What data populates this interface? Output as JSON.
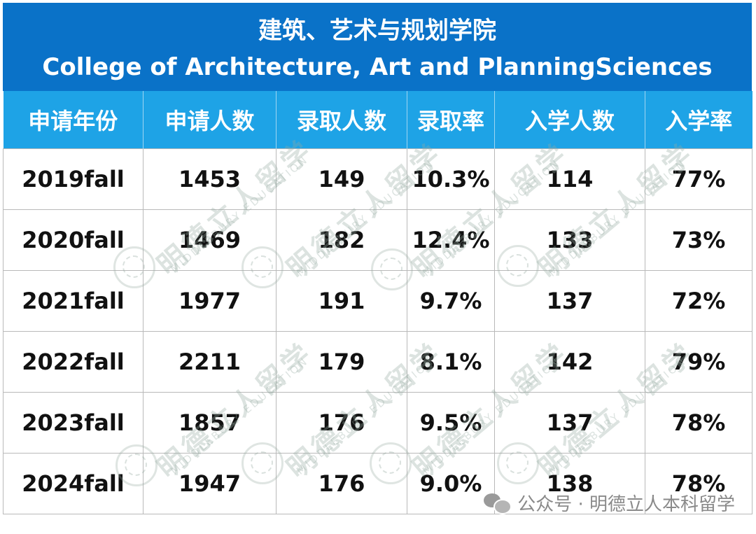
{
  "title": {
    "zh": "建筑、艺术与规划学院",
    "en": "College of Architecture, Art and PlanningSciences"
  },
  "table": {
    "headers": [
      "申请年份",
      "申请人数",
      "录取人数",
      "录取率",
      "入学人数",
      "入学率"
    ],
    "rows": [
      [
        "2019fall",
        "1453",
        "149",
        "10.3%",
        "114",
        "77%"
      ],
      [
        "2020fall",
        "1469",
        "182",
        "12.4%",
        "133",
        "73%"
      ],
      [
        "2021fall",
        "1977",
        "191",
        "9.7%",
        "137",
        "72%"
      ],
      [
        "2022fall",
        "2211",
        "179",
        "8.1%",
        "142",
        "79%"
      ],
      [
        "2023fall",
        "1857",
        "176",
        "9.5%",
        "137",
        "78%"
      ],
      [
        "2024fall",
        "1947",
        "176",
        "9.0%",
        "138",
        "78%"
      ]
    ]
  },
  "watermark": {
    "zh": "明德立人留学",
    "en": "MIDDLEBURY EDUCATION"
  },
  "footer": {
    "icon": "wechat-icon",
    "text": "公众号 · 明德立人本科留学"
  },
  "colors": {
    "title_band": "#0a72c8",
    "header_row": "#1ea3e6",
    "text": "#111111"
  }
}
